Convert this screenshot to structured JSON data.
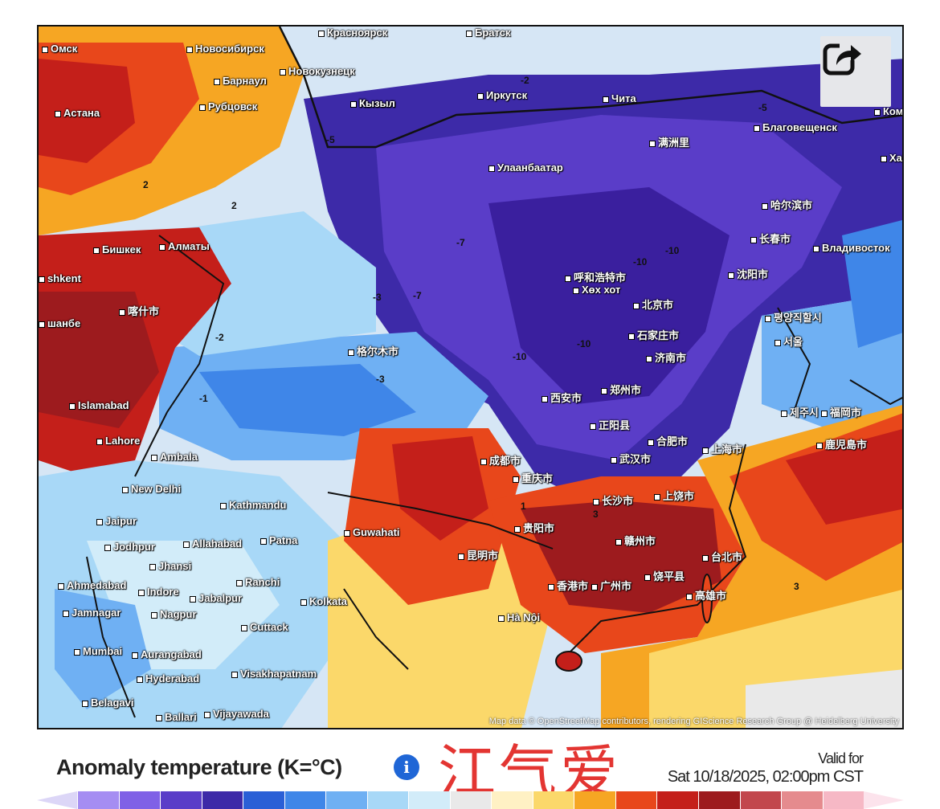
{
  "map": {
    "attribution": "Map data © OpenStreetMap contributors, rendering GIScience Research Group @ Heidelberg University",
    "share_icon": "share-icon",
    "places": [
      {
        "name": "Омск"
      },
      {
        "name": "Новосибирск"
      },
      {
        "name": "Красноярск"
      },
      {
        "name": "Братск"
      },
      {
        "name": "Новокузнецк"
      },
      {
        "name": "Барнаул"
      },
      {
        "name": "Рубцовск"
      },
      {
        "name": "Астана"
      },
      {
        "name": "Кызыл"
      },
      {
        "name": "Иркутск"
      },
      {
        "name": "Чита"
      },
      {
        "name": "Благовещенск"
      },
      {
        "name": "Хабаро"
      },
      {
        "name": "Улаанбаатар"
      },
      {
        "name": "满洲里"
      },
      {
        "name": "哈尔滨市"
      },
      {
        "name": "长春市"
      },
      {
        "name": "Владивосток"
      },
      {
        "name": "沈阳市"
      },
      {
        "name": "呼和浩特市"
      },
      {
        "name": "Хөх хот"
      },
      {
        "name": "北京市"
      },
      {
        "name": "평양직할시"
      },
      {
        "name": "石家庄市"
      },
      {
        "name": "서울"
      },
      {
        "name": "济南市"
      },
      {
        "name": "Бишкек"
      },
      {
        "name": "Алматы"
      },
      {
        "name": "shkent"
      },
      {
        "name": "喀什市"
      },
      {
        "name": "шанбе"
      },
      {
        "name": "格尔木市"
      },
      {
        "name": "西安市"
      },
      {
        "name": "郑州市"
      },
      {
        "name": "Islamabad"
      },
      {
        "name": "正阳县"
      },
      {
        "name": "合肥市"
      },
      {
        "name": "上海市"
      },
      {
        "name": "제주시"
      },
      {
        "name": "福岡市"
      },
      {
        "name": "鹿児島市"
      },
      {
        "name": "Lahore"
      },
      {
        "name": "Ambala"
      },
      {
        "name": "成都市"
      },
      {
        "name": "重庆市"
      },
      {
        "name": "武汉市"
      },
      {
        "name": "New Delhi"
      },
      {
        "name": "Kathmandu"
      },
      {
        "name": "长沙市"
      },
      {
        "name": "上饶市"
      },
      {
        "name": "Jaipur"
      },
      {
        "name": "Guwahati"
      },
      {
        "name": "贵阳市"
      },
      {
        "name": "赣州市"
      },
      {
        "name": "Jodhpur"
      },
      {
        "name": "Allahabad"
      },
      {
        "name": "Patna"
      },
      {
        "name": "昆明市"
      },
      {
        "name": "台北市"
      },
      {
        "name": "Jhansi"
      },
      {
        "name": "Ahmedabad"
      },
      {
        "name": "Indore"
      },
      {
        "name": "Ranchi"
      },
      {
        "name": "Jabalpur"
      },
      {
        "name": "Kolkata"
      },
      {
        "name": "香港市"
      },
      {
        "name": "广州市"
      },
      {
        "name": "饶平县"
      },
      {
        "name": "高雄市"
      },
      {
        "name": "Jamnagar"
      },
      {
        "name": "Nagpur"
      },
      {
        "name": "Hà Nội"
      },
      {
        "name": "Cuttack"
      },
      {
        "name": "Mumbai"
      },
      {
        "name": "Aurangabad"
      },
      {
        "name": "Hyderabad"
      },
      {
        "name": "Visakhapatnam"
      },
      {
        "name": "Belagavi"
      },
      {
        "name": "Ballari"
      },
      {
        "name": "Vijayawada"
      },
      {
        "name": "Комс"
      },
      {
        "name": "Кызыл"
      }
    ],
    "contour_values": [
      {
        "v": "-10"
      },
      {
        "v": "-10"
      },
      {
        "v": "-10"
      },
      {
        "v": "-10"
      },
      {
        "v": "-7"
      },
      {
        "v": "-7"
      },
      {
        "v": "-5"
      },
      {
        "v": "-5"
      },
      {
        "v": "-3"
      },
      {
        "v": "-3"
      },
      {
        "v": "-2"
      },
      {
        "v": "-2"
      },
      {
        "v": "-1"
      },
      {
        "v": "-1"
      },
      {
        "v": "1"
      },
      {
        "v": "1"
      },
      {
        "v": "2"
      },
      {
        "v": "2"
      },
      {
        "v": "3"
      },
      {
        "v": "3"
      }
    ]
  },
  "legend": {
    "title": "Anomaly temperature (K=°C)",
    "info_icon": "info-icon",
    "info_glyph": "i",
    "watermark": "江气爱",
    "valid_label": "Valid for",
    "valid_date": "Sat 10/18/2025, 02:00pm CST",
    "colors": [
      "#a58df2",
      "#7f61e6",
      "#5a3dc8",
      "#3d2aa8",
      "#2a5fd6",
      "#3f86e8",
      "#6fb0f3",
      "#a8d8f7",
      "#d2ecf9",
      "#e9e9e9",
      "#fff1c4",
      "#fbd86a",
      "#f6a623",
      "#e8471b",
      "#c41f1a",
      "#9d1b1e",
      "#c2474d",
      "#e58b8e",
      "#f6b8c5"
    ]
  }
}
